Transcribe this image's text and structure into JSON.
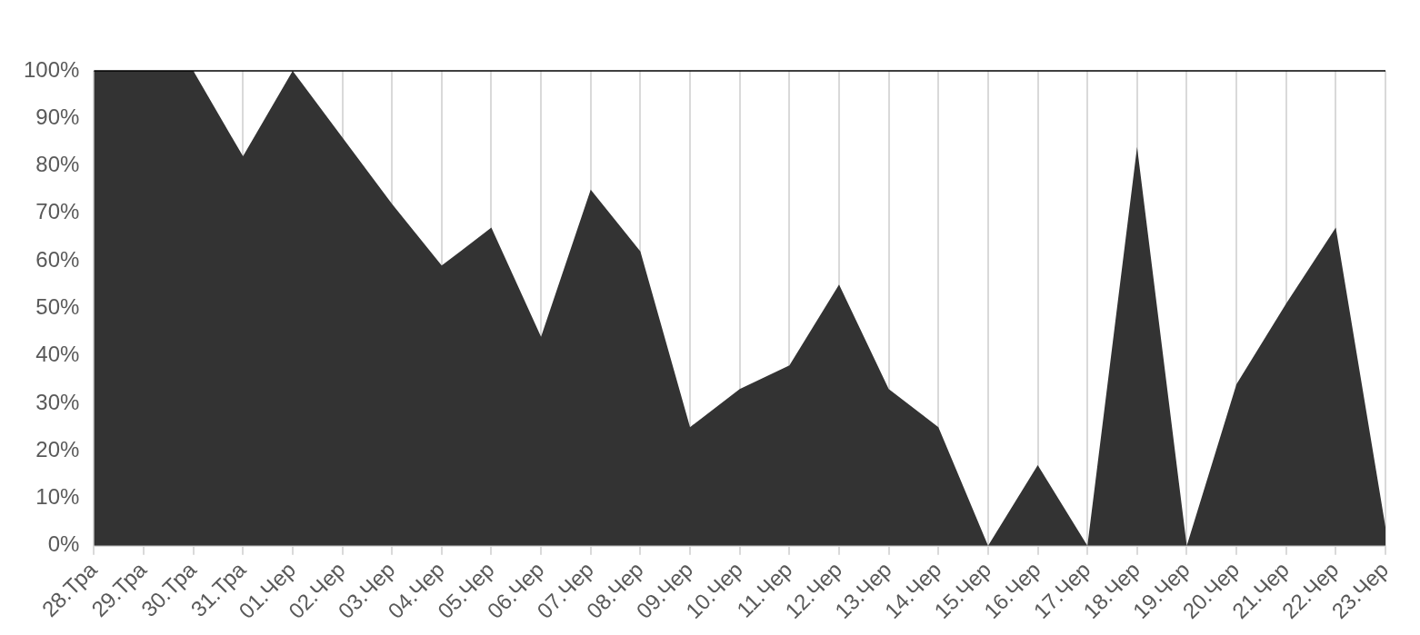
{
  "chart_data": {
    "type": "area",
    "categories": [
      "28.Тра",
      "29.Тра",
      "30.Тра",
      "31.Тра",
      "01.Чер",
      "02.Чер",
      "03.Чер",
      "04.Чер",
      "05.Чер",
      "06.Чер",
      "07.Чер",
      "08.Чер",
      "09.Чер",
      "10.Чер",
      "11.Чер",
      "12.Чер",
      "13.Чер",
      "14.Чер",
      "15.Чер",
      "16.Чер",
      "17.Чер",
      "18.Чер",
      "19.Чер",
      "20.Чер",
      "21.Чер",
      "22.Чер",
      "23.Чер"
    ],
    "series": [
      {
        "color": "#333333",
        "values": [
          100,
          100,
          100,
          82,
          100,
          86,
          72,
          59,
          67,
          44,
          75,
          62,
          25,
          33,
          38,
          55,
          33,
          25,
          0,
          17,
          0,
          84,
          0,
          34,
          51,
          67,
          4
        ]
      }
    ],
    "ylim": [
      0,
      100
    ],
    "yticks": [
      {
        "value": 0,
        "label": "0%"
      },
      {
        "value": 10,
        "label": "10%"
      },
      {
        "value": 20,
        "label": "20%"
      },
      {
        "value": 30,
        "label": "30%"
      },
      {
        "value": 40,
        "label": "40%"
      },
      {
        "value": 50,
        "label": "50%"
      },
      {
        "value": 60,
        "label": "60%"
      },
      {
        "value": 70,
        "label": "70%"
      },
      {
        "value": 80,
        "label": "80%"
      },
      {
        "value": 90,
        "label": "90%"
      },
      {
        "value": 100,
        "label": "100%"
      }
    ],
    "grid": "x",
    "legend": false
  }
}
